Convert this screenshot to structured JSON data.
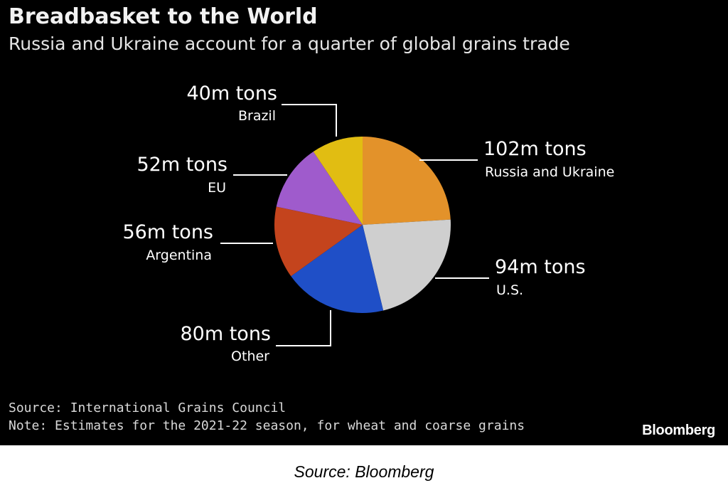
{
  "figure": {
    "source_text": "Source: International Grains Council",
    "note_text": "Note: Estimates for the 2021-22 season, for wheat and coarse grains",
    "brand": "Bloomberg",
    "caption": "Source: Bloomberg"
  },
  "chart_data": {
    "type": "pie",
    "title": "Breadbasket to the World",
    "subtitle": "Russia and Ukraine account for a quarter of global grains trade",
    "unit": "m tons",
    "slices": [
      {
        "label": "Russia and Ukraine",
        "value": 102,
        "value_label": "102m tons",
        "color": "#e3922a"
      },
      {
        "label": "U.S.",
        "value": 94,
        "value_label": "94m tons",
        "color": "#cfcfcf"
      },
      {
        "label": "Other",
        "value": 80,
        "value_label": "80m tons",
        "color": "#1f4fc7"
      },
      {
        "label": "Argentina",
        "value": 56,
        "value_label": "56m tons",
        "color": "#c4441d"
      },
      {
        "label": "EU",
        "value": 52,
        "value_label": "52m tons",
        "color": "#9f5bcc"
      },
      {
        "label": "Brazil",
        "value": 40,
        "value_label": "40m tons",
        "color": "#e1bd12"
      }
    ]
  }
}
